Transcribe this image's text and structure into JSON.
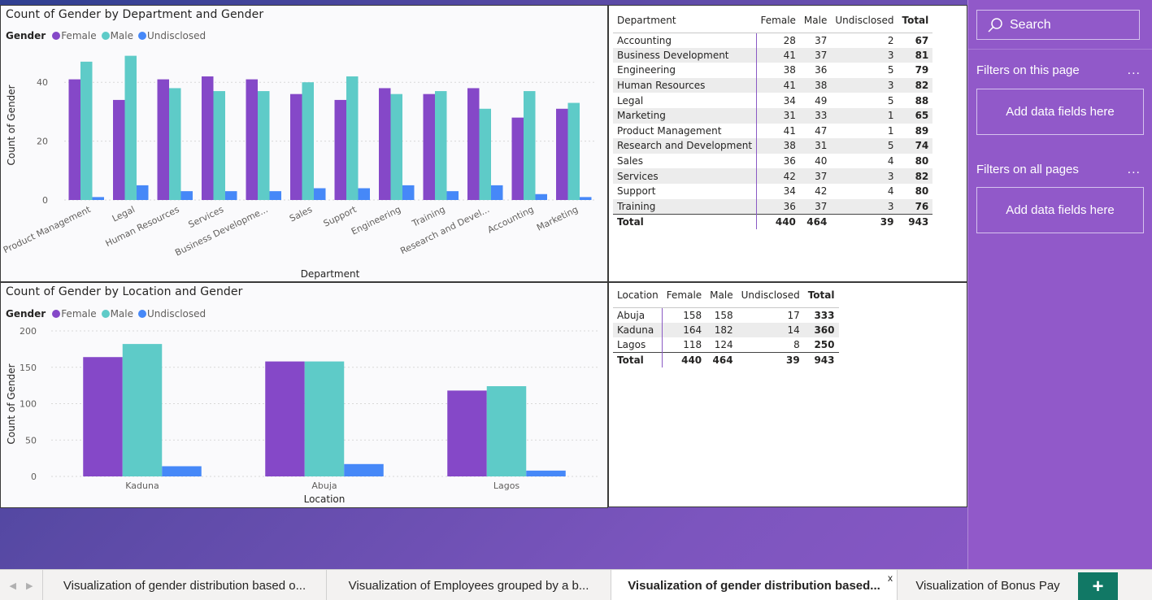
{
  "colors": {
    "female": "#8548c8",
    "male": "#5ecbc8",
    "undisclosed": "#4688f8"
  },
  "chart1": {
    "title": "Count of Gender by Department and Gender",
    "legend_title": "Gender",
    "legend": [
      "Female",
      "Male",
      "Undisclosed"
    ],
    "xlabel": "Department",
    "ylabel": "Count of Gender"
  },
  "chart2": {
    "title": "Count of Gender by Location and Gender",
    "legend_title": "Gender",
    "legend": [
      "Female",
      "Male",
      "Undisclosed"
    ],
    "xlabel": "Location",
    "ylabel": "Count of Gender"
  },
  "chart_data": [
    {
      "type": "bar",
      "title": "Count of Gender by Department and Gender",
      "xlabel": "Department",
      "ylabel": "Count of Gender",
      "categories": [
        "Product Management",
        "Legal",
        "Human Resources",
        "Services",
        "Business Developme...",
        "Sales",
        "Support",
        "Engineering",
        "Training",
        "Research and Devel...",
        "Accounting",
        "Marketing"
      ],
      "series": [
        {
          "name": "Female",
          "values": [
            41,
            34,
            41,
            42,
            41,
            36,
            34,
            38,
            36,
            38,
            28,
            31
          ]
        },
        {
          "name": "Male",
          "values": [
            47,
            49,
            38,
            37,
            37,
            40,
            42,
            36,
            37,
            31,
            37,
            33
          ]
        },
        {
          "name": "Undisclosed",
          "values": [
            1,
            5,
            3,
            3,
            3,
            4,
            4,
            5,
            3,
            5,
            2,
            1
          ]
        }
      ],
      "yticks": [
        0,
        20,
        40
      ],
      "ylim": [
        0,
        50
      ],
      "grid": true,
      "legend_position": "top-left"
    },
    {
      "type": "bar",
      "title": "Count of Gender by Location and Gender",
      "xlabel": "Location",
      "ylabel": "Count of Gender",
      "categories": [
        "Kaduna",
        "Abuja",
        "Lagos"
      ],
      "series": [
        {
          "name": "Female",
          "values": [
            164,
            158,
            118
          ]
        },
        {
          "name": "Male",
          "values": [
            182,
            158,
            124
          ]
        },
        {
          "name": "Undisclosed",
          "values": [
            14,
            17,
            8
          ]
        }
      ],
      "yticks": [
        0,
        50,
        100,
        150,
        200
      ],
      "ylim": [
        0,
        200
      ],
      "grid": true,
      "legend_position": "top-left"
    }
  ],
  "table1": {
    "headers": [
      "Department",
      "Female",
      "Male",
      "Undisclosed",
      "Total"
    ],
    "rows": [
      [
        "Accounting",
        "28",
        "37",
        "2",
        "67"
      ],
      [
        "Business Development",
        "41",
        "37",
        "3",
        "81"
      ],
      [
        "Engineering",
        "38",
        "36",
        "5",
        "79"
      ],
      [
        "Human Resources",
        "41",
        "38",
        "3",
        "82"
      ],
      [
        "Legal",
        "34",
        "49",
        "5",
        "88"
      ],
      [
        "Marketing",
        "31",
        "33",
        "1",
        "65"
      ],
      [
        "Product Management",
        "41",
        "47",
        "1",
        "89"
      ],
      [
        "Research and Development",
        "38",
        "31",
        "5",
        "74"
      ],
      [
        "Sales",
        "36",
        "40",
        "4",
        "80"
      ],
      [
        "Services",
        "42",
        "37",
        "3",
        "82"
      ],
      [
        "Support",
        "34",
        "42",
        "4",
        "80"
      ],
      [
        "Training",
        "36",
        "37",
        "3",
        "76"
      ]
    ],
    "total": [
      "Total",
      "440",
      "464",
      "39",
      "943"
    ]
  },
  "table2": {
    "headers": [
      "Location",
      "Female",
      "Male",
      "Undisclosed",
      "Total"
    ],
    "rows": [
      [
        "Abuja",
        "158",
        "158",
        "17",
        "333"
      ],
      [
        "Kaduna",
        "164",
        "182",
        "14",
        "360"
      ],
      [
        "Lagos",
        "118",
        "124",
        "8",
        "250"
      ]
    ],
    "total": [
      "Total",
      "440",
      "464",
      "39",
      "943"
    ]
  },
  "filters": {
    "search_label": "Search",
    "on_this_page": "Filters on this page",
    "on_all_pages": "Filters on all pages",
    "more": "...",
    "add_fields": "Add data fields here"
  },
  "tabs": [
    {
      "label": "Visualization of gender distribution based o..."
    },
    {
      "label": "Visualization of Employees grouped by a b..."
    },
    {
      "label": "Visualization of gender distribution based..."
    },
    {
      "label": "Visualization of Bonus Pay"
    }
  ],
  "tab_close": "x",
  "add_tab": "+"
}
